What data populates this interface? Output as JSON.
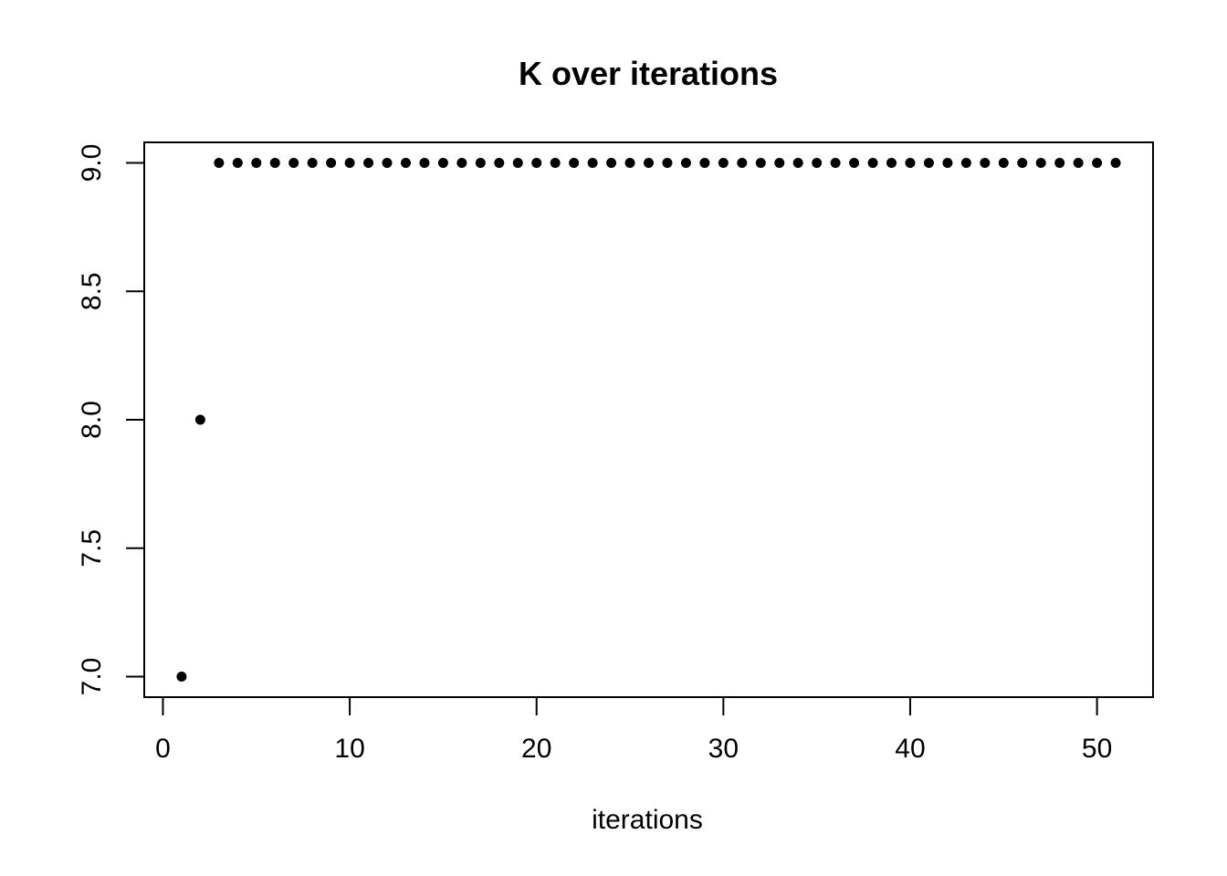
{
  "figure": {
    "background_color": "#ffffff",
    "foreground_color": "#000000"
  },
  "chart_data": {
    "type": "scatter",
    "title": "K over iterations",
    "xlabel": "iterations",
    "ylabel": "",
    "x": [
      1,
      2,
      3,
      4,
      5,
      6,
      7,
      8,
      9,
      10,
      11,
      12,
      13,
      14,
      15,
      16,
      17,
      18,
      19,
      20,
      21,
      22,
      23,
      24,
      25,
      26,
      27,
      28,
      29,
      30,
      31,
      32,
      33,
      34,
      35,
      36,
      37,
      38,
      39,
      40,
      41,
      42,
      43,
      44,
      45,
      46,
      47,
      48,
      49,
      50,
      51
    ],
    "y": [
      7,
      8,
      9,
      9,
      9,
      9,
      9,
      9,
      9,
      9,
      9,
      9,
      9,
      9,
      9,
      9,
      9,
      9,
      9,
      9,
      9,
      9,
      9,
      9,
      9,
      9,
      9,
      9,
      9,
      9,
      9,
      9,
      9,
      9,
      9,
      9,
      9,
      9,
      9,
      9,
      9,
      9,
      9,
      9,
      9,
      9,
      9,
      9,
      9,
      9,
      9
    ],
    "x_ticks": [
      "0",
      "10",
      "20",
      "30",
      "40",
      "50"
    ],
    "y_ticks": [
      "7.0",
      "7.5",
      "8.0",
      "8.5",
      "9.0"
    ],
    "xlim": [
      -1,
      53
    ],
    "ylim": [
      6.92,
      9.08
    ],
    "grid": false,
    "legend": null,
    "point_style": "filled-circle",
    "point_color": "#000000",
    "axis_color": "#000000"
  }
}
